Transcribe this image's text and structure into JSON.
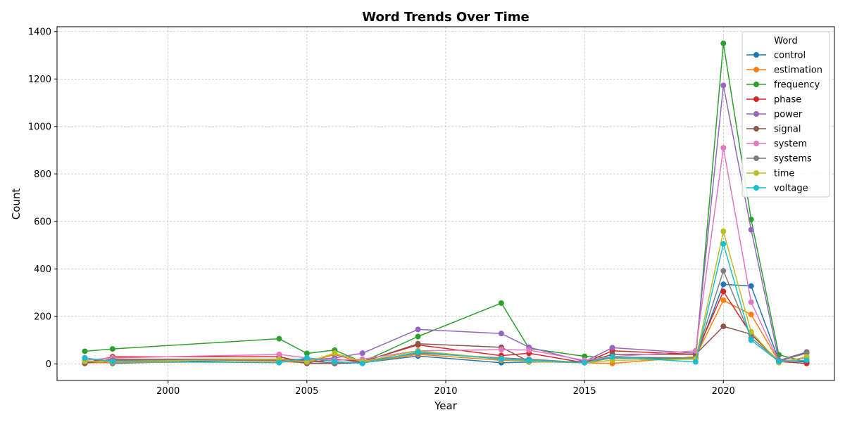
{
  "chart_data": {
    "type": "line",
    "title": "Word Trends Over Time",
    "xlabel": "Year",
    "ylabel": "Count",
    "xlim": [
      1996,
      2024
    ],
    "ylim": [
      -70,
      1420
    ],
    "xticks": [
      2000,
      2005,
      2010,
      2015,
      2020
    ],
    "yticks": [
      0,
      200,
      400,
      600,
      800,
      1000,
      1200,
      1400
    ],
    "grid": true,
    "legend": {
      "title": "Word",
      "placement": "top-right"
    },
    "x": [
      1997,
      1998,
      2004,
      2005,
      2006,
      2007,
      2009,
      2012,
      2013,
      2015,
      2016,
      2019,
      2020,
      2021,
      2022,
      2023
    ],
    "series": [
      {
        "name": "control",
        "color": "#1f77b4",
        "values": [
          25,
          2,
          20,
          18,
          2,
          5,
          33,
          5,
          8,
          10,
          28,
          25,
          335,
          328,
          15,
          8
        ]
      },
      {
        "name": "estimation",
        "color": "#ff7f0e",
        "values": [
          5,
          5,
          10,
          5,
          40,
          5,
          40,
          15,
          12,
          5,
          2,
          30,
          268,
          208,
          10,
          15
        ]
      },
      {
        "name": "frequency",
        "color": "#2ca02c",
        "values": [
          53,
          63,
          106,
          44,
          58,
          8,
          115,
          256,
          65,
          32,
          25,
          20,
          1350,
          608,
          38,
          8
        ]
      },
      {
        "name": "phase",
        "color": "#d62728",
        "values": [
          3,
          30,
          30,
          5,
          20,
          10,
          80,
          35,
          45,
          5,
          55,
          40,
          305,
          125,
          10,
          2
        ]
      },
      {
        "name": "power",
        "color": "#9467bd",
        "values": [
          5,
          15,
          15,
          15,
          25,
          45,
          145,
          128,
          70,
          10,
          68,
          45,
          1173,
          565,
          15,
          50
        ]
      },
      {
        "name": "signal",
        "color": "#8c564b",
        "values": [
          2,
          20,
          20,
          2,
          2,
          8,
          85,
          70,
          10,
          5,
          40,
          40,
          158,
          125,
          10,
          48
        ]
      },
      {
        "name": "system",
        "color": "#e377c2",
        "values": [
          15,
          25,
          40,
          25,
          15,
          20,
          55,
          60,
          58,
          15,
          30,
          55,
          910,
          260,
          10,
          25
        ]
      },
      {
        "name": "systems",
        "color": "#7f7f7f",
        "values": [
          10,
          15,
          15,
          10,
          5,
          10,
          45,
          25,
          20,
          5,
          25,
          25,
          392,
          110,
          12,
          45
        ]
      },
      {
        "name": "time",
        "color": "#bcbd22",
        "values": [
          10,
          10,
          20,
          8,
          45,
          10,
          55,
          20,
          10,
          5,
          15,
          20,
          558,
          135,
          5,
          30
        ]
      },
      {
        "name": "voltage",
        "color": "#17becf",
        "values": [
          25,
          10,
          5,
          25,
          10,
          2,
          50,
          20,
          15,
          5,
          30,
          8,
          505,
          100,
          10,
          15
        ]
      }
    ]
  }
}
